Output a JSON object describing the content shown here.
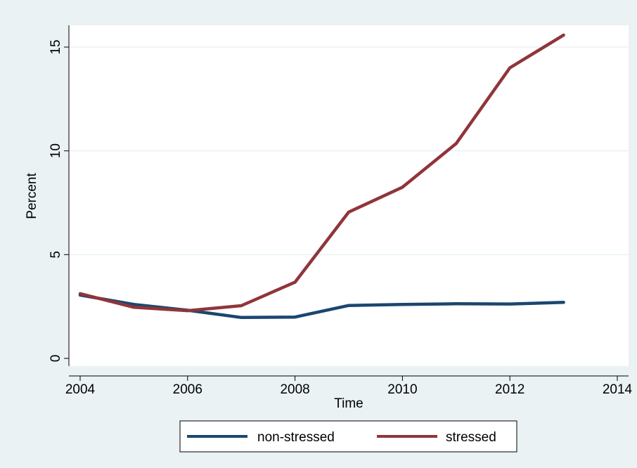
{
  "chart_data": {
    "type": "line",
    "xlabel": "Time",
    "ylabel": "Percent",
    "xlim": [
      2004,
      2014
    ],
    "ylim": [
      0,
      16
    ],
    "x_ticks": [
      "2004",
      "2006",
      "2008",
      "2010",
      "2012",
      "2014"
    ],
    "y_ticks": [
      "0",
      "5",
      "10",
      "15"
    ],
    "x_tick_values": [
      2004,
      2006,
      2008,
      2010,
      2012,
      2014
    ],
    "y_tick_values": [
      0,
      5,
      10,
      15
    ],
    "grid": "horizontal",
    "legend_position": "bottom",
    "x": [
      2004,
      2005,
      2006,
      2007,
      2008,
      2009,
      2010,
      2011,
      2012,
      2013
    ],
    "series": [
      {
        "name": "non-stressed",
        "color": "#1a476f",
        "values": [
          3.05,
          2.6,
          2.32,
          1.97,
          1.99,
          2.55,
          2.6,
          2.63,
          2.62,
          2.7
        ]
      },
      {
        "name": "stressed",
        "color": "#90353b",
        "values": [
          3.12,
          2.46,
          2.3,
          2.54,
          3.67,
          7.05,
          8.25,
          10.35,
          14.0,
          15.58
        ]
      }
    ]
  }
}
